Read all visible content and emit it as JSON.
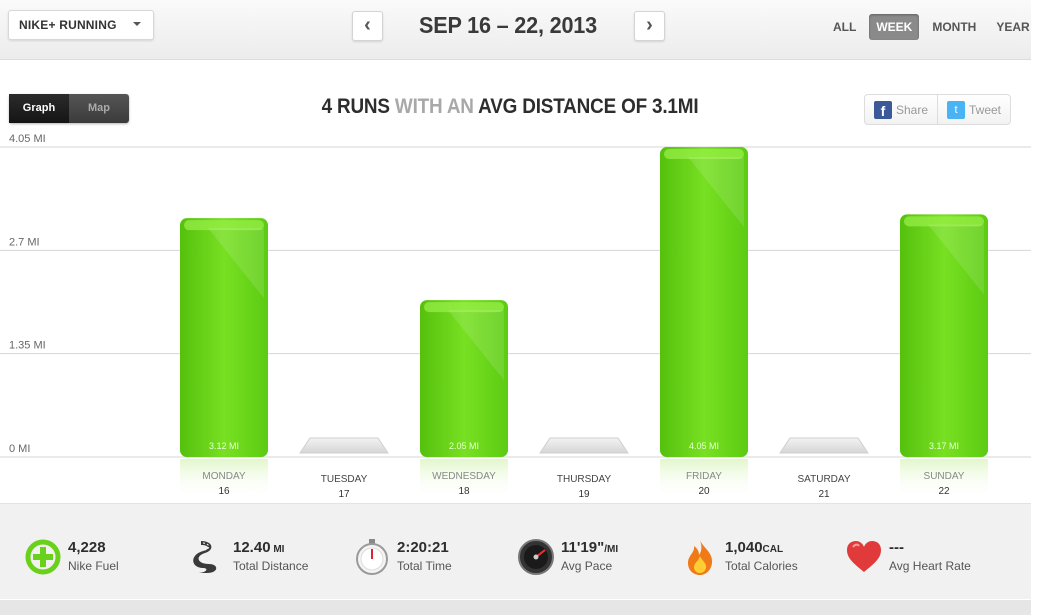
{
  "header": {
    "app_selector": "NIKE+ RUNNING",
    "date_range": "SEP 16 – 22, 2013",
    "prev_icon": "chevron-left-icon",
    "next_icon": "chevron-right-icon",
    "period_tabs": [
      {
        "label": "ALL",
        "active": false
      },
      {
        "label": "WEEK",
        "active": true
      },
      {
        "label": "MONTH",
        "active": false
      },
      {
        "label": "YEAR",
        "active": false
      }
    ]
  },
  "toggle": {
    "graph_label": "Graph",
    "map_label": "Map",
    "active": "Graph"
  },
  "headline": {
    "part1": "4 RUNS",
    "part2": " WITH AN ",
    "part3": "AVG DISTANCE OF 3.1MI"
  },
  "share": {
    "facebook_label": "Share",
    "twitter_label": "Tweet"
  },
  "chart_data": {
    "type": "bar",
    "categories": [
      "MONDAY",
      "TUESDAY",
      "WEDNESDAY",
      "THURSDAY",
      "FRIDAY",
      "SATURDAY",
      "SUNDAY"
    ],
    "dates": [
      "16",
      "17",
      "18",
      "19",
      "20",
      "21",
      "22"
    ],
    "values": [
      3.12,
      0,
      2.05,
      0,
      4.05,
      0,
      3.17
    ],
    "value_labels": [
      "3.12 MI",
      "",
      "2.05 MI",
      "",
      "4.05 MI",
      "",
      "3.17 MI"
    ],
    "y_ticks": [
      "0 MI",
      "1.35 MI",
      "2.7 MI",
      "4.05 MI"
    ],
    "y_tick_values": [
      0,
      1.35,
      2.7,
      4.05
    ],
    "ylim": [
      0,
      4.05
    ],
    "grid": true,
    "bar_color": "#6ad11a",
    "empty_color": "#e2e2e2"
  },
  "stats": [
    {
      "value": "4,228",
      "unit": "",
      "label": "Nike Fuel",
      "icon": "nike-fuel-icon"
    },
    {
      "value": "12.40",
      "unit": " MI",
      "label": "Total Distance",
      "icon": "road-icon"
    },
    {
      "value": "2:20:21",
      "unit": "",
      "label": "Total Time",
      "icon": "stopwatch-icon"
    },
    {
      "value": "11'19\"",
      "unit": "/MI",
      "label": "Avg Pace",
      "icon": "speedometer-icon"
    },
    {
      "value": "1,040",
      "unit": "CAL",
      "label": "Total Calories",
      "icon": "flame-icon"
    },
    {
      "value": "---",
      "unit": "",
      "label": "Avg Heart Rate",
      "icon": "heart-icon"
    }
  ]
}
